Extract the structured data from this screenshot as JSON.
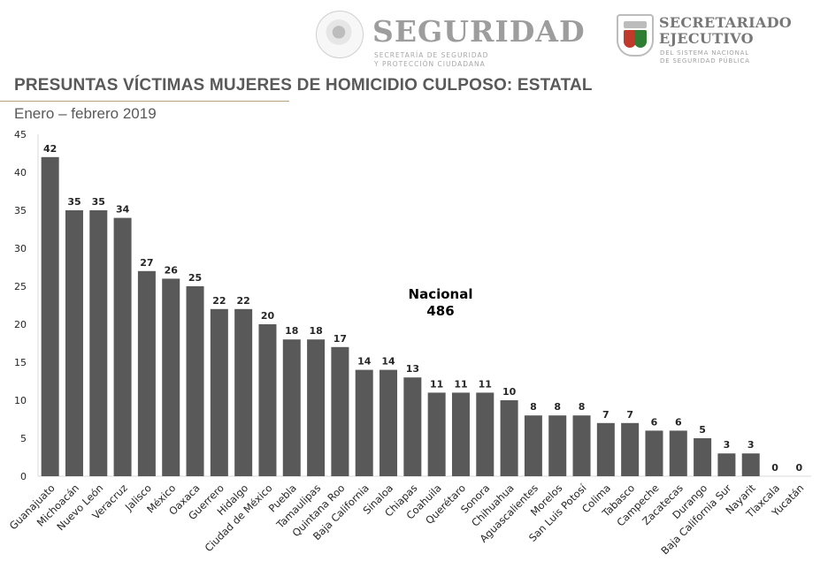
{
  "header": {
    "seguridad_title": "SEGURIDAD",
    "seguridad_sub_line1": "SECRETARÍA DE SEGURIDAD",
    "seguridad_sub_line2": "Y PROTECCIÓN CIUDADANA",
    "secretariado_title_line1": "SECRETARIADO",
    "secretariado_title_line2": "EJECUTIVO",
    "secretariado_sub_line1": "DEL SISTEMA NACIONAL",
    "secretariado_sub_line2": "DE SEGURIDAD PÚBLICA"
  },
  "colors": {
    "bar": "#595959",
    "text": "#262626",
    "title": "#595959",
    "rule": "#b9a37e"
  },
  "chart_data": {
    "type": "bar",
    "title": "PRESUNTAS VÍCTIMAS MUJERES DE HOMICIDIO CULPOSO: ESTATAL",
    "subtitle": "Enero – febrero 2019",
    "xlabel": "",
    "ylabel": "",
    "ylim": [
      0,
      45
    ],
    "yticks": [
      0,
      5,
      10,
      15,
      20,
      25,
      30,
      35,
      40,
      45
    ],
    "grid": false,
    "annotation_label": "Nacional",
    "annotation_value": "486",
    "categories": [
      "Guanajuato",
      "Michoacán",
      "Nuevo León",
      "Veracruz",
      "Jalisco",
      "México",
      "Oaxaca",
      "Guerrero",
      "Hidalgo",
      "Ciudad de México",
      "Puebla",
      "Tamaulipas",
      "Quintana Roo",
      "Baja California",
      "Sinaloa",
      "Chiapas",
      "Coahuila",
      "Querétaro",
      "Sonora",
      "Chihuahua",
      "Aguascalientes",
      "Morelos",
      "San Luis Potosí",
      "Colima",
      "Tabasco",
      "Campeche",
      "Zacatecas",
      "Durango",
      "Baja California Sur",
      "Nayarit",
      "Tlaxcala",
      "Yucatán"
    ],
    "values": [
      42,
      35,
      35,
      34,
      27,
      26,
      25,
      22,
      22,
      20,
      18,
      18,
      17,
      14,
      14,
      13,
      11,
      11,
      11,
      10,
      8,
      8,
      8,
      7,
      7,
      6,
      6,
      5,
      3,
      3,
      0,
      0
    ]
  }
}
